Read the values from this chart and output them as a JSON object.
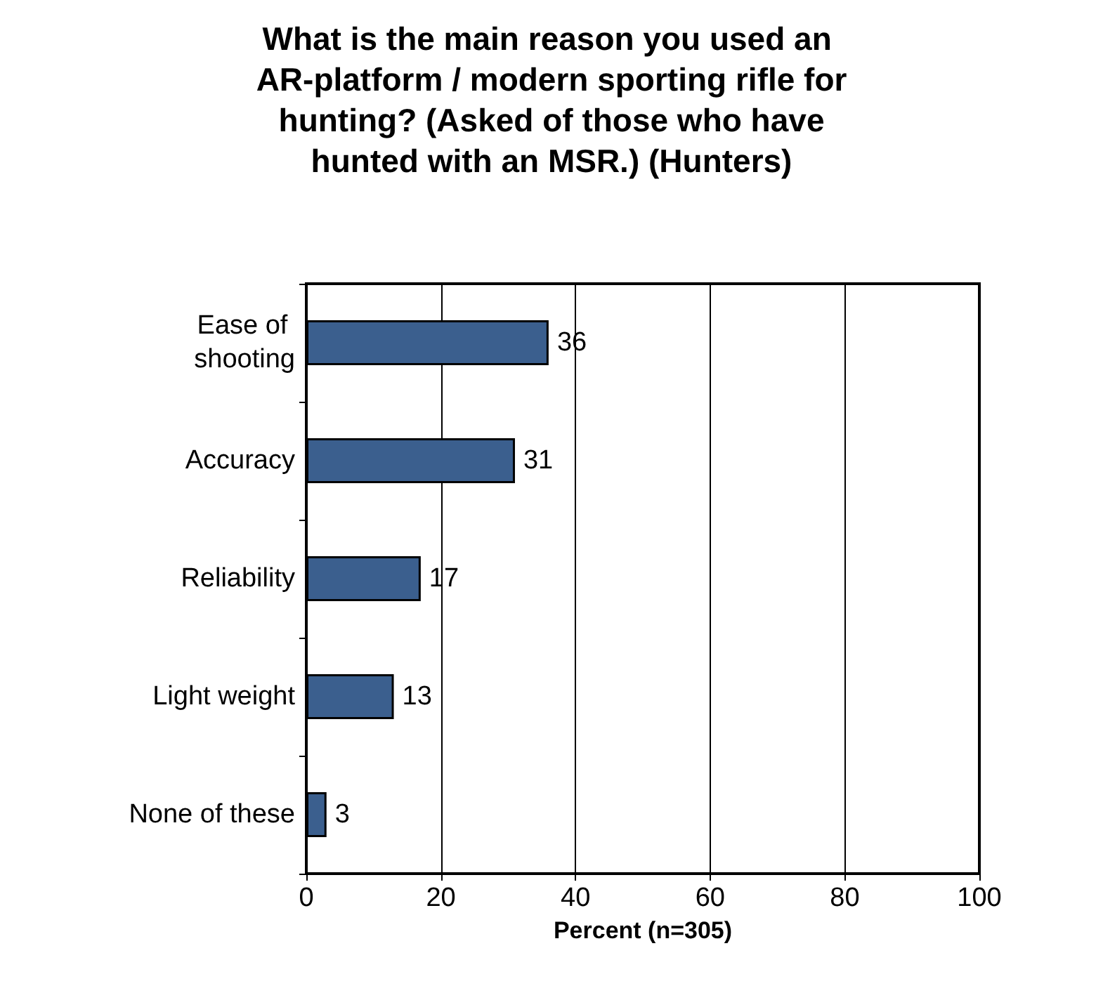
{
  "chart_data": {
    "type": "bar",
    "orientation": "horizontal",
    "title": "What is the main reason you used an AR-platform / modern sporting rifle for hunting? (Asked of those who have hunted with an MSR.) (Hunters)",
    "xlabel": "Percent (n=305)",
    "categories": [
      "Ease of shooting",
      "Accuracy",
      "Reliability",
      "Light weight",
      "None of these"
    ],
    "values": [
      36,
      31,
      17,
      13,
      3
    ],
    "color": "#3b5f8e",
    "xlim": [
      0,
      100
    ],
    "xticks": [
      0,
      20,
      40,
      60,
      80,
      100
    ],
    "grid": "x",
    "data_labels": true
  }
}
